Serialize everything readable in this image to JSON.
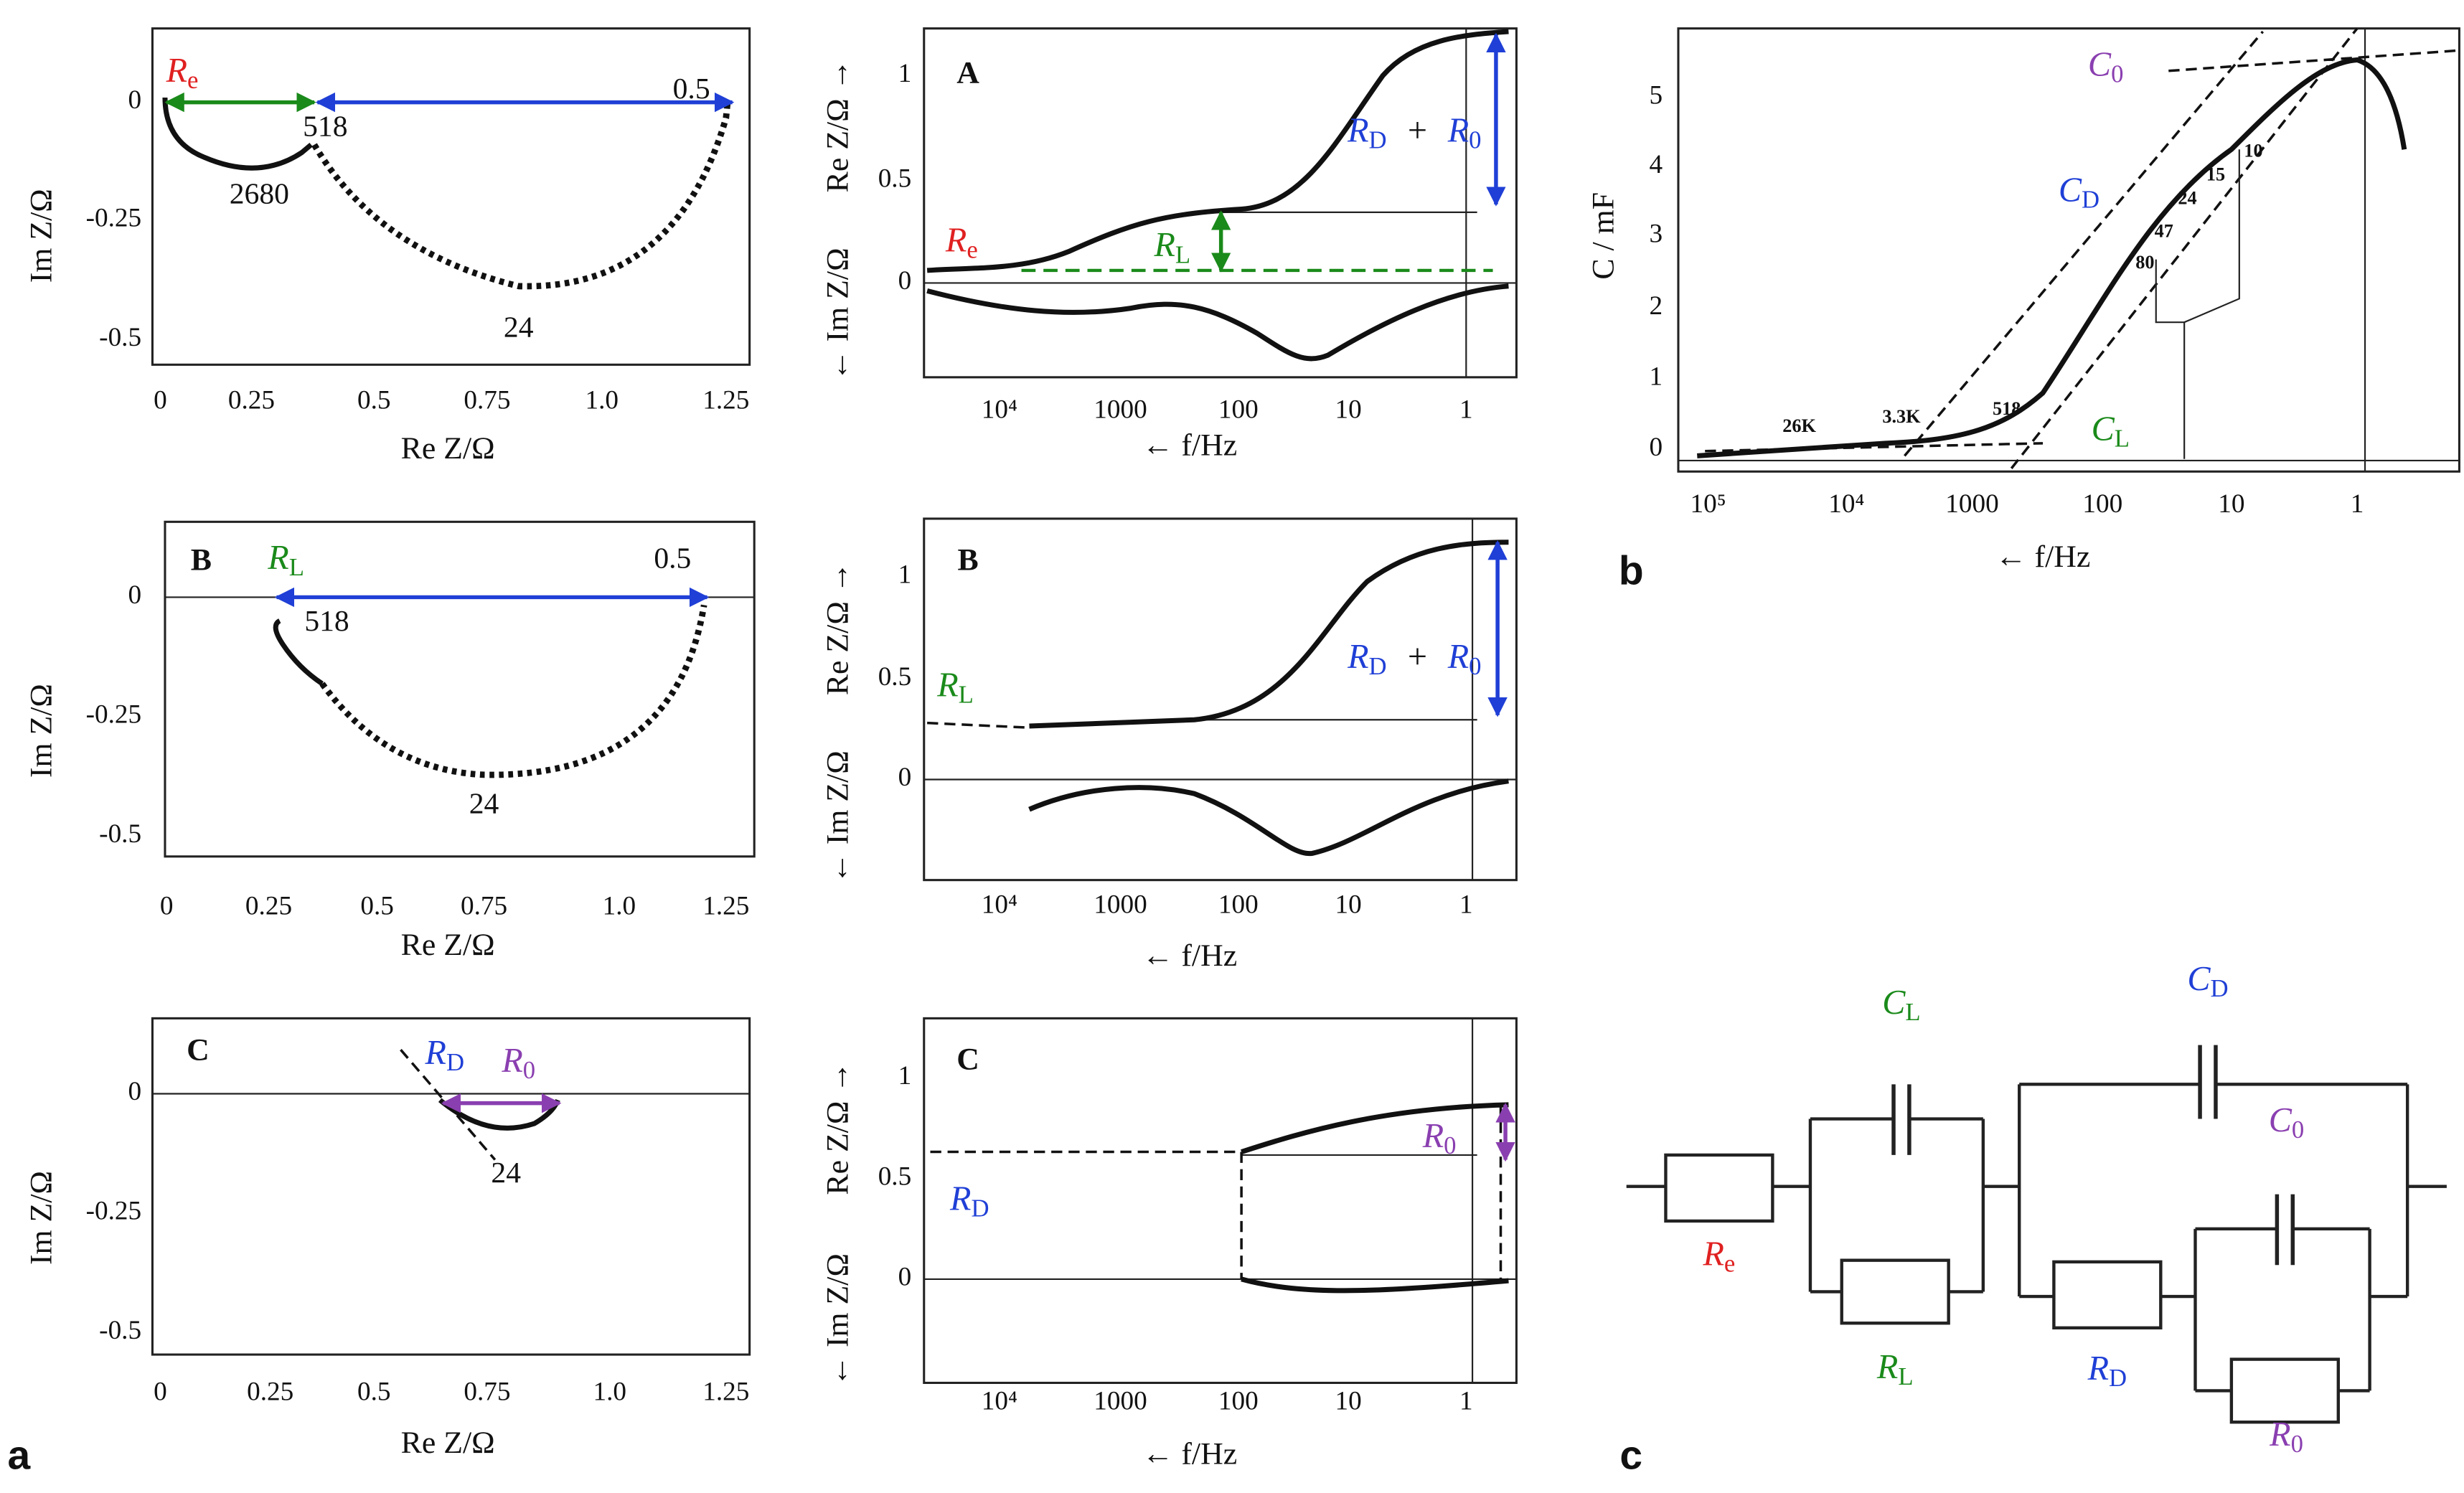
{
  "panel_labels": {
    "a": "a",
    "b": "b",
    "c": "c"
  },
  "nyquist": [
    {
      "yticks": [
        "0",
        "-0.25",
        "-0.5"
      ],
      "xticks": [
        "0",
        "0.25",
        "0.5",
        "0.75",
        "1.0",
        "1.25"
      ],
      "xlabel": "Re Z/Ω",
      "ylabel": "Im Z/Ω",
      "re": {
        "main": "R",
        "sub": "e"
      },
      "points": [
        "518",
        "2680",
        "24",
        "0.5"
      ]
    },
    {
      "letter": "B",
      "yticks": [
        "0",
        "-0.25",
        "-0.5"
      ],
      "xticks": [
        "0",
        "0.25",
        "0.5",
        "0.75",
        "1.0",
        "1.25"
      ],
      "xlabel": "Re Z/Ω",
      "ylabel": "Im Z/Ω",
      "rl": {
        "main": "R",
        "sub": "L"
      },
      "points": [
        "518",
        "24",
        "0.5"
      ]
    },
    {
      "letter": "C",
      "yticks": [
        "0",
        "-0.25",
        "-0.5"
      ],
      "xticks": [
        "0",
        "0.25",
        "0.5",
        "0.75",
        "1.0",
        "1.25"
      ],
      "xlabel": "Re Z/Ω",
      "ylabel": "Im Z/Ω",
      "rd": {
        "main": "R",
        "sub": "D"
      },
      "r0": {
        "main": "R",
        "sub": "0"
      },
      "points": [
        "24"
      ]
    }
  ],
  "bode": [
    {
      "letter": "A",
      "yticks": [
        "1",
        "0.5",
        "0"
      ],
      "xticks": [
        "10⁴",
        "1000",
        "100",
        "10",
        "1"
      ],
      "xlabel": "← f/Hz",
      "re_label": "Re Z/Ω →",
      "im_label": "← Im Z/Ω",
      "sum": {
        "a": {
          "main": "R",
          "sub": "D"
        },
        "plus": "+",
        "b": {
          "main": "R",
          "sub": "0"
        }
      },
      "rl": {
        "main": "R",
        "sub": "L"
      },
      "re": {
        "main": "R",
        "sub": "e"
      }
    },
    {
      "letter": "B",
      "yticks": [
        "1",
        "0.5",
        "0"
      ],
      "xticks": [
        "10⁴",
        "1000",
        "100",
        "10",
        "1"
      ],
      "xlabel": "← f/Hz",
      "re_label": "Re Z/Ω →",
      "im_label": "← Im Z/Ω",
      "sum": {
        "a": {
          "main": "R",
          "sub": "D"
        },
        "plus": "+",
        "b": {
          "main": "R",
          "sub": "0"
        }
      },
      "rl": {
        "main": "R",
        "sub": "L"
      }
    },
    {
      "letter": "C",
      "yticks": [
        "1",
        "0.5",
        "0"
      ],
      "xticks": [
        "10⁴",
        "1000",
        "100",
        "10",
        "1"
      ],
      "xlabel": "← f/Hz",
      "re_label": "Re Z/Ω →",
      "im_label": "← Im Z/Ω",
      "r0": {
        "main": "R",
        "sub": "0"
      },
      "rd": {
        "main": "R",
        "sub": "D"
      }
    }
  ],
  "capacitance": {
    "yticks": [
      "0",
      "1",
      "2",
      "3",
      "4",
      "5"
    ],
    "xticks": [
      "10⁵",
      "10⁴",
      "1000",
      "100",
      "10",
      "1"
    ],
    "xlabel": "← f/Hz",
    "ylabel": "C / mF",
    "c0": {
      "main": "C",
      "sub": "0"
    },
    "cd": {
      "main": "C",
      "sub": "D"
    },
    "cl": {
      "main": "C",
      "sub": "L"
    },
    "points": [
      "26K",
      "3.3K",
      "518",
      "80",
      "47",
      "24",
      "15",
      "10"
    ]
  },
  "circuit": {
    "re": {
      "main": "R",
      "sub": "e"
    },
    "rl": {
      "main": "R",
      "sub": "L"
    },
    "cl": {
      "main": "C",
      "sub": "L"
    },
    "cd": {
      "main": "C",
      "sub": "D"
    },
    "rd": {
      "main": "R",
      "sub": "D"
    },
    "c0": {
      "main": "C",
      "sub": "0"
    },
    "r0": {
      "main": "R",
      "sub": "0"
    }
  }
}
